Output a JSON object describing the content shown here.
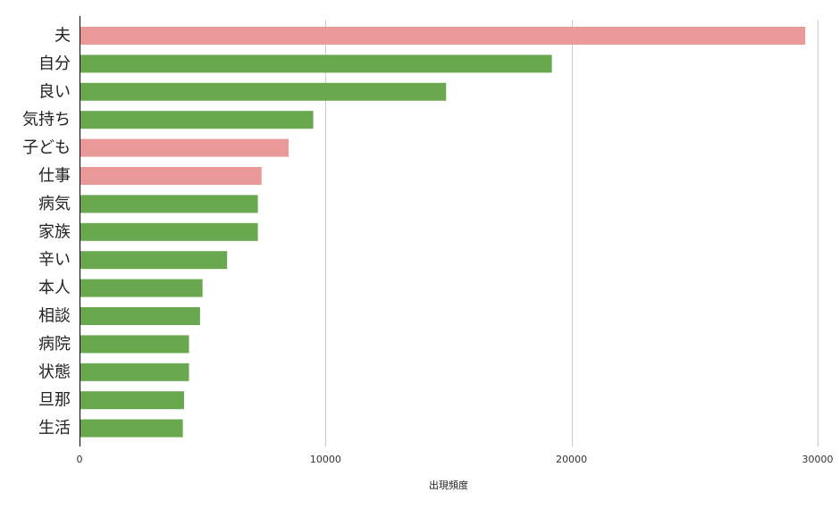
{
  "chart_data": {
    "type": "bar",
    "orientation": "horizontal",
    "categories": [
      "夫",
      "自分",
      "良い",
      "気持ち",
      "子ども",
      "仕事",
      "病気",
      "家族",
      "辛い",
      "本人",
      "相談",
      "病院",
      "状態",
      "旦那",
      "生活"
    ],
    "values": [
      29500,
      19200,
      14900,
      9500,
      8500,
      7400,
      7250,
      7250,
      6000,
      5000,
      4900,
      4450,
      4450,
      4250,
      4200
    ],
    "bar_colors": [
      "#ea9999",
      "#6aa84f",
      "#6aa84f",
      "#6aa84f",
      "#ea9999",
      "#ea9999",
      "#6aa84f",
      "#6aa84f",
      "#6aa84f",
      "#6aa84f",
      "#6aa84f",
      "#6aa84f",
      "#6aa84f",
      "#6aa84f",
      "#6aa84f"
    ],
    "colors": {
      "highlight": "#ea9999",
      "default": "#6aa84f"
    },
    "xlabel": "出現頻度",
    "ylabel": "",
    "title": "",
    "xlim": [
      0,
      30000
    ],
    "xticks": [
      0,
      10000,
      20000,
      30000
    ],
    "xtick_labels": [
      "0",
      "10000",
      "20000",
      "30000"
    ],
    "grid": "vertical",
    "legend": "none"
  }
}
